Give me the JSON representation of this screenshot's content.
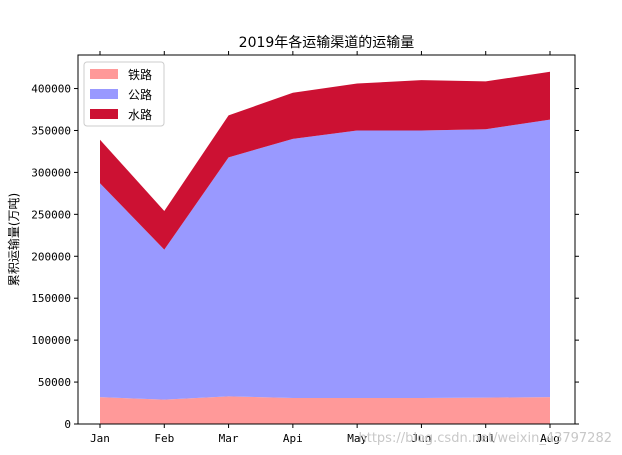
{
  "chart_data": {
    "type": "area",
    "stacked": true,
    "title": "2019年各运输渠道的运输量",
    "xlabel": "",
    "ylabel": "累积运输量(万吨)",
    "categories": [
      "Jan",
      "Feb",
      "Mar",
      "Api",
      "May",
      "Jun",
      "Jul",
      "Aug"
    ],
    "series": [
      {
        "name": "铁路",
        "color": "#ff9999",
        "values": [
          32000,
          29000,
          33000,
          31000,
          31000,
          31000,
          31500,
          32000
        ]
      },
      {
        "name": "公路",
        "color": "#9999ff",
        "values": [
          255000,
          179000,
          285000,
          309000,
          319000,
          319000,
          320000,
          331000
        ]
      },
      {
        "name": "水路",
        "color": "#cc1133",
        "values": [
          52000,
          46000,
          50000,
          55000,
          56000,
          60000,
          57000,
          57000
        ]
      }
    ],
    "ylim": [
      0,
      440000
    ],
    "yticks": [
      0,
      50000,
      100000,
      150000,
      200000,
      250000,
      300000,
      350000,
      400000
    ],
    "grid": false,
    "legend_position": "top-left"
  },
  "watermark": "https://blog.csdn.net/weixin_43797282"
}
